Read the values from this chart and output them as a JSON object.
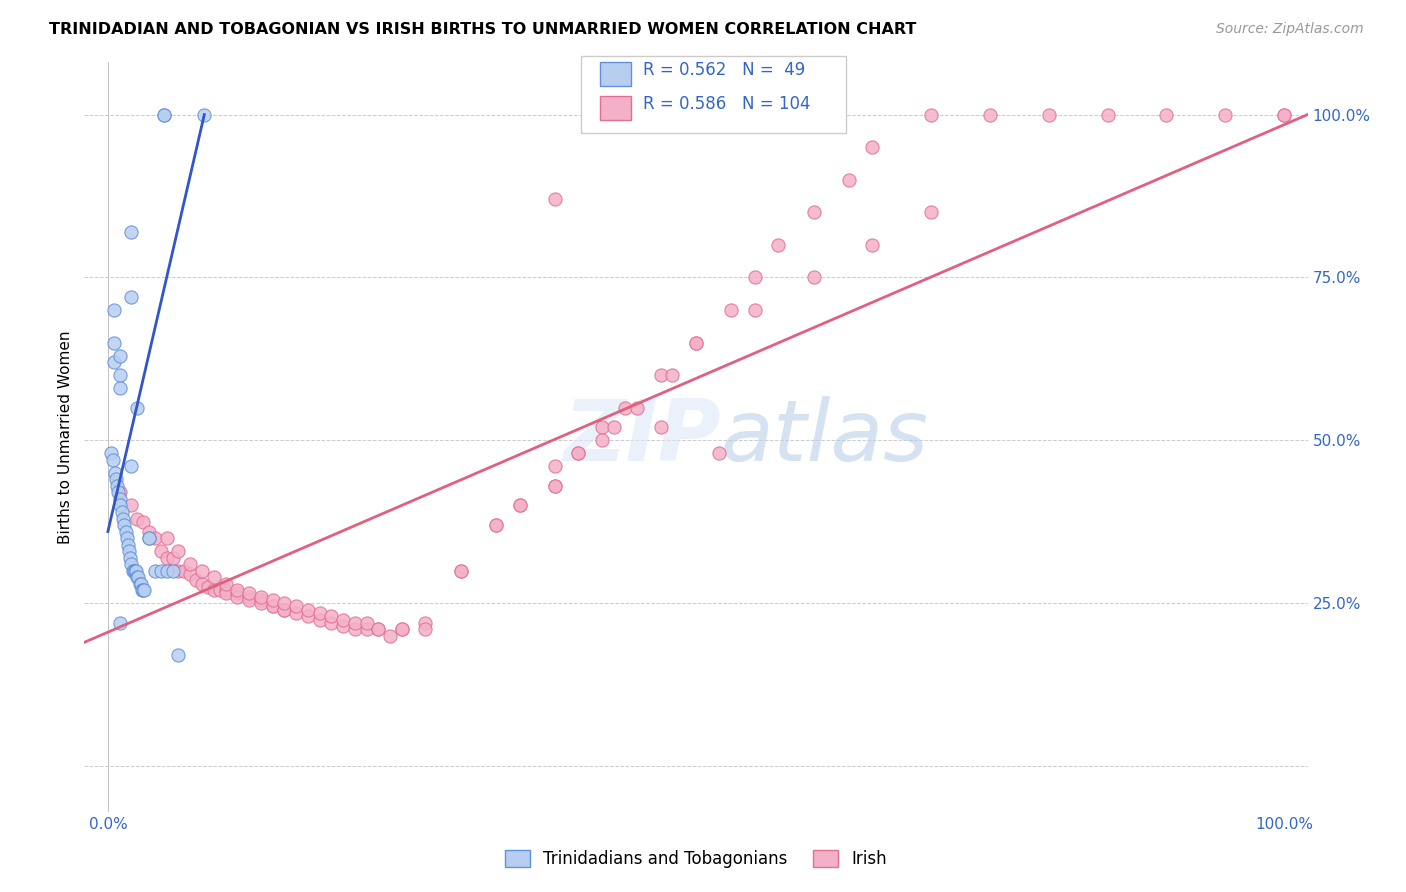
{
  "title": "TRINIDADIAN AND TOBAGONIAN VS IRISH BIRTHS TO UNMARRIED WOMEN CORRELATION CHART",
  "source": "Source: ZipAtlas.com",
  "ylabel": "Births to Unmarried Women",
  "tt_color_face": "#b8cef0",
  "tt_color_edge": "#6090d8",
  "irish_color_face": "#f4b0c8",
  "irish_color_edge": "#e07090",
  "tt_line_color": "#3355cc",
  "irish_line_color": "#e06080",
  "right_tick_color": "#3366cc",
  "legend_r1_color": "#3355cc",
  "legend_r2_color": "#3355cc",
  "tt_scatter_x": [
    0.048,
    0.048,
    0.082,
    0.02,
    0.02,
    0.005,
    0.005,
    0.005,
    0.003,
    0.004,
    0.006,
    0.007,
    0.008,
    0.009,
    0.01,
    0.01,
    0.01,
    0.01,
    0.012,
    0.013,
    0.014,
    0.015,
    0.016,
    0.017,
    0.018,
    0.019,
    0.02,
    0.021,
    0.022,
    0.023,
    0.024,
    0.025,
    0.026,
    0.027,
    0.028,
    0.029,
    0.03,
    0.031,
    0.035,
    0.035,
    0.04,
    0.045,
    0.05,
    0.055,
    0.06,
    0.01,
    0.01,
    0.02,
    0.025
  ],
  "tt_scatter_y": [
    1.0,
    1.0,
    1.0,
    0.82,
    0.72,
    0.7,
    0.65,
    0.62,
    0.48,
    0.47,
    0.45,
    0.44,
    0.43,
    0.42,
    0.63,
    0.6,
    0.41,
    0.4,
    0.39,
    0.38,
    0.37,
    0.36,
    0.35,
    0.34,
    0.33,
    0.32,
    0.31,
    0.3,
    0.3,
    0.3,
    0.3,
    0.29,
    0.29,
    0.28,
    0.28,
    0.27,
    0.27,
    0.27,
    0.35,
    0.35,
    0.3,
    0.3,
    0.3,
    0.3,
    0.17,
    0.58,
    0.22,
    0.46,
    0.55
  ],
  "irish_scatter_x": [
    0.38,
    0.01,
    0.02,
    0.025,
    0.03,
    0.035,
    0.04,
    0.045,
    0.05,
    0.055,
    0.06,
    0.065,
    0.07,
    0.075,
    0.08,
    0.085,
    0.09,
    0.095,
    0.1,
    0.1,
    0.11,
    0.11,
    0.12,
    0.12,
    0.13,
    0.13,
    0.14,
    0.14,
    0.15,
    0.15,
    0.16,
    0.17,
    0.18,
    0.19,
    0.2,
    0.21,
    0.22,
    0.23,
    0.24,
    0.25,
    0.27,
    0.3,
    0.33,
    0.35,
    0.38,
    0.4,
    0.42,
    0.44,
    0.47,
    0.5,
    0.53,
    0.55,
    0.57,
    0.6,
    0.63,
    0.65,
    0.7,
    0.75,
    0.8,
    0.85,
    0.9,
    0.95,
    1.0,
    1.0,
    0.05,
    0.06,
    0.07,
    0.08,
    0.09,
    0.1,
    0.11,
    0.12,
    0.13,
    0.14,
    0.15,
    0.16,
    0.17,
    0.18,
    0.19,
    0.2,
    0.21,
    0.22,
    0.23,
    0.25,
    0.27,
    0.3,
    0.33,
    0.35,
    0.38,
    0.4,
    0.43,
    0.45,
    0.48,
    0.5,
    0.55,
    0.6,
    0.65,
    0.7,
    0.38,
    0.42,
    0.47,
    0.52
  ],
  "irish_scatter_y": [
    0.87,
    0.42,
    0.4,
    0.38,
    0.375,
    0.36,
    0.35,
    0.33,
    0.32,
    0.32,
    0.3,
    0.3,
    0.295,
    0.285,
    0.28,
    0.275,
    0.27,
    0.27,
    0.27,
    0.265,
    0.265,
    0.26,
    0.26,
    0.255,
    0.255,
    0.25,
    0.245,
    0.245,
    0.24,
    0.24,
    0.235,
    0.23,
    0.225,
    0.22,
    0.215,
    0.21,
    0.21,
    0.21,
    0.2,
    0.21,
    0.22,
    0.3,
    0.37,
    0.4,
    0.43,
    0.48,
    0.52,
    0.55,
    0.6,
    0.65,
    0.7,
    0.75,
    0.8,
    0.85,
    0.9,
    0.95,
    1.0,
    1.0,
    1.0,
    1.0,
    1.0,
    1.0,
    1.0,
    1.0,
    0.35,
    0.33,
    0.31,
    0.3,
    0.29,
    0.28,
    0.27,
    0.265,
    0.26,
    0.255,
    0.25,
    0.245,
    0.24,
    0.235,
    0.23,
    0.225,
    0.22,
    0.22,
    0.21,
    0.21,
    0.21,
    0.3,
    0.37,
    0.4,
    0.43,
    0.48,
    0.52,
    0.55,
    0.6,
    0.65,
    0.7,
    0.75,
    0.8,
    0.85,
    0.46,
    0.5,
    0.52,
    0.48
  ],
  "tt_line_x": [
    0.0,
    0.082
  ],
  "tt_line_y": [
    0.36,
    1.0
  ],
  "irish_line_x": [
    -0.02,
    1.02
  ],
  "irish_line_y": [
    0.19,
    1.0
  ],
  "xlim": [
    -0.02,
    1.02
  ],
  "ylim": [
    -0.07,
    1.08
  ],
  "xticks": [
    0.0,
    0.1,
    0.2,
    0.3,
    0.4,
    0.5,
    0.6,
    0.7,
    0.8,
    0.9,
    1.0
  ],
  "yticks_right": [
    0.0,
    0.25,
    0.5,
    0.75,
    1.0
  ],
  "ytick_labels_right": [
    "",
    "25.0%",
    "50.0%",
    "75.0%",
    "100.0%"
  ],
  "grid_color": "#cccccc",
  "background": "#ffffff"
}
